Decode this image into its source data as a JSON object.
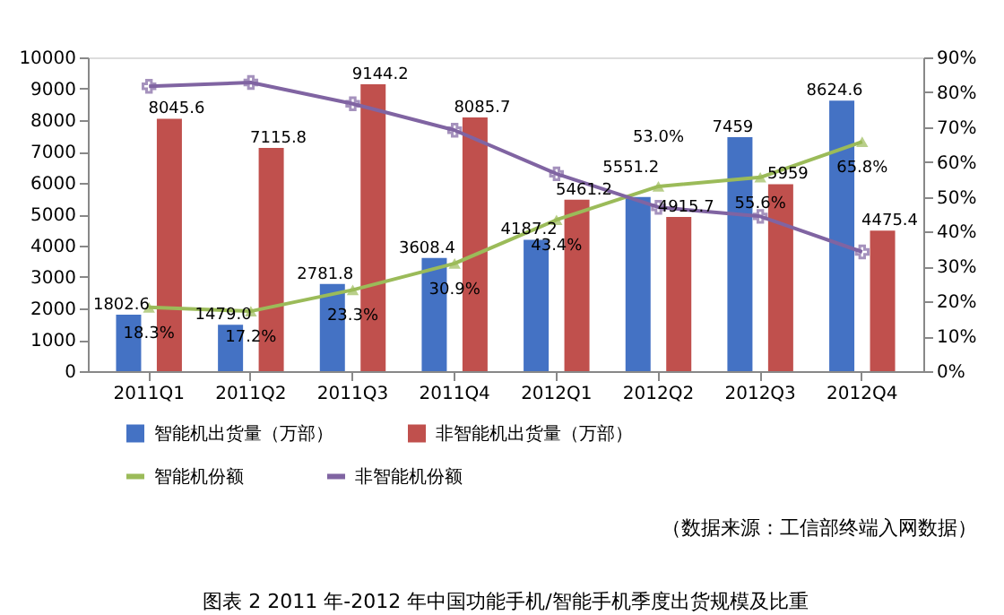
{
  "chart_data": {
    "type": "bar",
    "title": "图表 2  2011 年-2012 年中国功能手机/智能手机季度出货规模及比重",
    "annotations": [
      "（数据来源：工信部终端入网数据）"
    ],
    "categories": [
      "2011Q1",
      "2011Q2",
      "2011Q3",
      "2011Q4",
      "2012Q1",
      "2012Q2",
      "2012Q3",
      "2012Q4"
    ],
    "series": [
      {
        "name": "智能机出货量（万部）",
        "color": "#4472c4",
        "values": [
          1802.6,
          1479.0,
          2781.8,
          3608.4,
          4187.2,
          5551.2,
          7459,
          8624.6
        ],
        "value_labels": [
          "1802.6",
          "1479.0",
          "2781.8",
          "3608.4",
          "4187.2",
          "5551.2",
          "7459",
          "8624.6"
        ]
      },
      {
        "name": "非智能机出货量（万部）",
        "color": "#c0504d",
        "values": [
          8045.6,
          7115.8,
          9144.2,
          8085.7,
          5461.2,
          4915.7,
          5959,
          4475.4
        ],
        "value_labels": [
          "8045.6",
          "7115.8",
          "9144.2",
          "8085.7",
          "5461.2",
          "4915.7",
          "5959",
          "4475.4"
        ]
      },
      {
        "name": "智能机份额",
        "type": "line",
        "axis": "y2",
        "color": "#9bbb59",
        "marker": "triangle",
        "values": [
          18.3,
          17.2,
          23.3,
          30.9,
          43.4,
          53.0,
          55.6,
          65.8
        ],
        "value_labels": [
          "18.3%",
          "17.2%",
          "23.3%",
          "30.9%",
          "43.4%",
          "53.0%",
          "55.6%",
          "65.8%"
        ]
      },
      {
        "name": "非智能机份额",
        "type": "line",
        "axis": "y2",
        "color": "#8064a2",
        "marker": "cross",
        "values": [
          81.7,
          82.8,
          76.7,
          69.1,
          56.6,
          47.0,
          44.4,
          34.2
        ]
      }
    ],
    "ylim": [
      0,
      10000
    ],
    "ylabel": null,
    "yticks": [
      0,
      1000,
      2000,
      3000,
      4000,
      5000,
      6000,
      7000,
      8000,
      9000,
      10000
    ],
    "y2lim": [
      0,
      90
    ],
    "y2ticks": [
      {
        "value": 0,
        "label": "0%"
      },
      {
        "value": 10,
        "label": "10%"
      },
      {
        "value": 20,
        "label": "20%"
      },
      {
        "value": 30,
        "label": "30%"
      },
      {
        "value": 40,
        "label": "40%"
      },
      {
        "value": 50,
        "label": "50%"
      },
      {
        "value": 60,
        "label": "60%"
      },
      {
        "value": 70,
        "label": "70%"
      },
      {
        "value": 80,
        "label": "80%"
      },
      {
        "value": 90,
        "label": "90%"
      }
    ],
    "grid": false,
    "legend": "bottom",
    "line_style": "solid"
  }
}
